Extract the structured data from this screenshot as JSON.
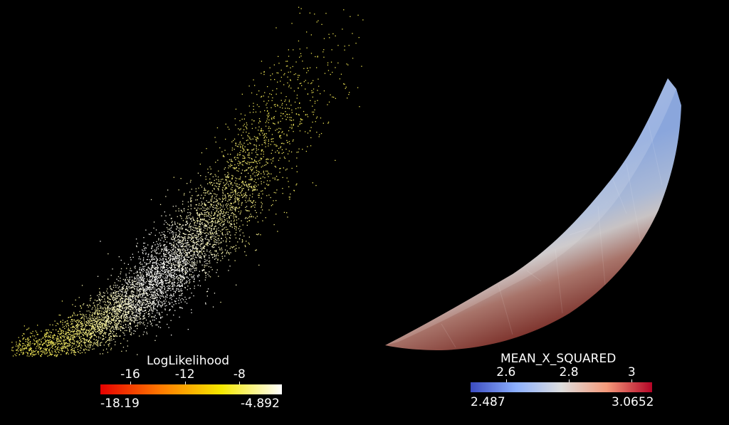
{
  "scatter_legend": {
    "title": "LogLikelihood",
    "min_label": "-18.19",
    "max_label": "-4.892",
    "ticks": [
      "-16",
      "-12",
      "-8"
    ],
    "tick_values": [
      -16,
      -12,
      -8
    ],
    "range": [
      -18.19,
      -4.892
    ],
    "colors": [
      "#e60000",
      "#ff7a00",
      "#f5e800",
      "#ffffff"
    ]
  },
  "surface_legend": {
    "title": "MEAN_X_SQUARED",
    "min_label": "2.487",
    "max_label": "3.0652",
    "ticks": [
      "2.6",
      "2.8",
      "3"
    ],
    "tick_values": [
      2.6,
      2.8,
      3.0
    ],
    "range": [
      2.487,
      3.0652
    ],
    "colors": [
      "#3b4cc0",
      "#8db0fe",
      "#dddddd",
      "#f49a7b",
      "#b40426"
    ]
  },
  "background": "#000000"
}
